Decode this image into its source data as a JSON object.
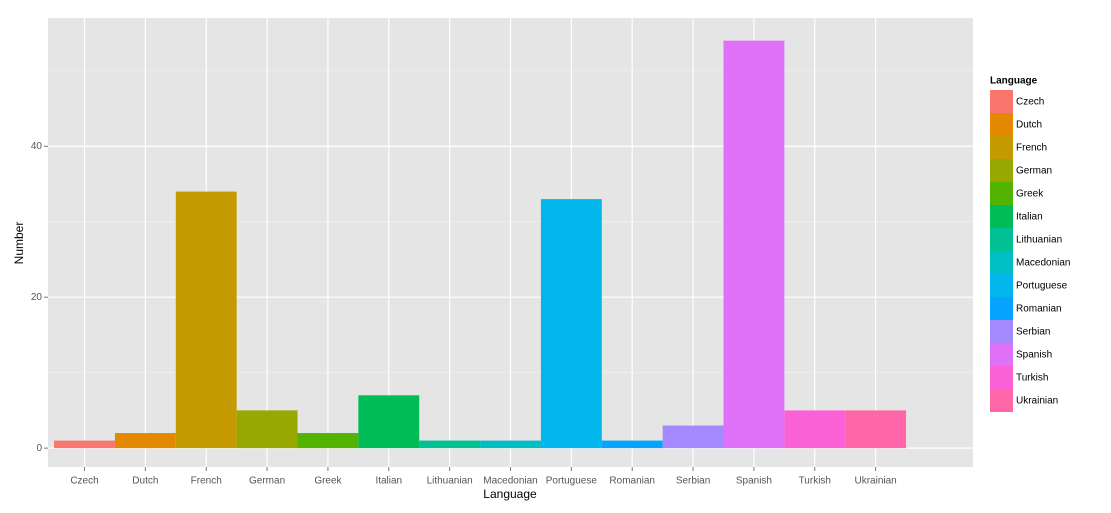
{
  "chart_data": {
    "type": "bar",
    "x_label": "Language",
    "y_label": "Number",
    "legend_title": "Language",
    "categories": [
      "Czech",
      "Dutch",
      "French",
      "German",
      "Greek",
      "Italian",
      "Lithuanian",
      "Macedonian",
      "Portuguese",
      "Romanian",
      "Serbian",
      "Spanish",
      "Turkish",
      "Ukrainian"
    ],
    "values": [
      1,
      2,
      34,
      5,
      2,
      7,
      1,
      1,
      33,
      1,
      3,
      54,
      5,
      5
    ],
    "colors": [
      "#F8766D",
      "#E38900",
      "#C49A00",
      "#99A800",
      "#53B400",
      "#00BC56",
      "#00C094",
      "#00BFC4",
      "#00B6EB",
      "#06A4FF",
      "#A58AFF",
      "#DF70F8",
      "#FB61D7",
      "#FF66A8"
    ],
    "ylim": [
      -2.5,
      57
    ],
    "yticks": [
      0,
      20,
      40
    ],
    "minor_yticks": [
      10,
      30,
      50
    ],
    "grid": true,
    "legend": "right"
  }
}
